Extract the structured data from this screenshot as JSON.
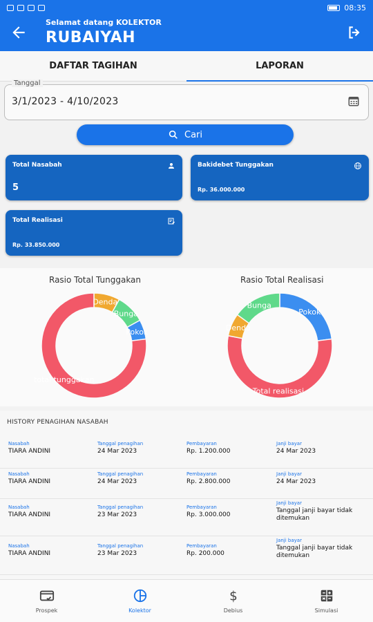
{
  "status_bar": {
    "time": "08:35"
  },
  "header": {
    "welcome": "Selamat datang KOLEKTOR",
    "name": "RUBAIYAH"
  },
  "tabs": [
    {
      "label": "DAFTAR TAGIHAN"
    },
    {
      "label": "LAPORAN"
    }
  ],
  "date_filter": {
    "label": "Tanggal",
    "value": "3/1/2023 - 4/10/2023"
  },
  "search_button": {
    "label": "Cari"
  },
  "cards": {
    "total_nasabah": {
      "title": "Total Nasabah",
      "value": "5"
    },
    "bakidebet": {
      "title": "Bakidebet Tunggakan",
      "value": "Rp. 36.000.000"
    },
    "total_realisasi": {
      "title": "Total Realisasi",
      "value": "Rp. 33.850.000"
    }
  },
  "charts": {
    "tunggakan": {
      "title": "Rasio Total Tunggakan"
    },
    "realisasi": {
      "title": "Rasio Total Realisasi"
    }
  },
  "chart_data": [
    {
      "type": "pie",
      "title": "Rasio Total Tunggakan",
      "categories": [
        "Denda",
        "Bunga",
        "Pokok",
        "total tunggakan"
      ],
      "values": [
        8,
        9,
        6,
        77
      ],
      "colors": [
        "#f0a830",
        "#5fd98a",
        "#3b8ef0",
        "#f25868"
      ]
    },
    {
      "type": "pie",
      "title": "Rasio Total Realisasi",
      "categories": [
        "Pokok",
        "Total realisasi",
        "Denda",
        "Bunga"
      ],
      "values": [
        23,
        55,
        7,
        15
      ],
      "colors": [
        "#3b8ef0",
        "#f25868",
        "#f0a830",
        "#5fd98a"
      ]
    }
  ],
  "history": {
    "title": "HISTORY PENAGIHAN NASABAH",
    "labels": {
      "nasabah": "Nasabah",
      "tanggal": "Tanggal penagihan",
      "pembayaran": "Pembayaran",
      "janji": "Janji bayar"
    },
    "rows": [
      {
        "nasabah": "TIARA ANDINI",
        "tanggal": "24 Mar 2023",
        "pembayaran": "Rp. 1.200.000",
        "janji": "24 Mar 2023"
      },
      {
        "nasabah": "TIARA ANDINI",
        "tanggal": "24 Mar 2023",
        "pembayaran": "Rp. 2.800.000",
        "janji": "24 Mar 2023"
      },
      {
        "nasabah": "TIARA ANDINI",
        "tanggal": "23 Mar 2023",
        "pembayaran": "Rp. 3.000.000",
        "janji": "Tanggal janji bayar tidak ditemukan"
      },
      {
        "nasabah": "TIARA ANDINI",
        "tanggal": "23 Mar 2023",
        "pembayaran": "Rp. 200.000",
        "janji": "Tanggal janji bayar tidak ditemukan"
      }
    ]
  },
  "bottom_nav": [
    {
      "label": "Prospek",
      "icon": "payment-card-icon"
    },
    {
      "label": "Kolektor",
      "icon": "pie-chart-icon"
    },
    {
      "label": "Debius",
      "icon": "dollar-icon"
    },
    {
      "label": "Simulasi",
      "icon": "calculator-icon"
    }
  ],
  "colors": {
    "primary": "#1a73e8",
    "card": "#1565c0"
  }
}
